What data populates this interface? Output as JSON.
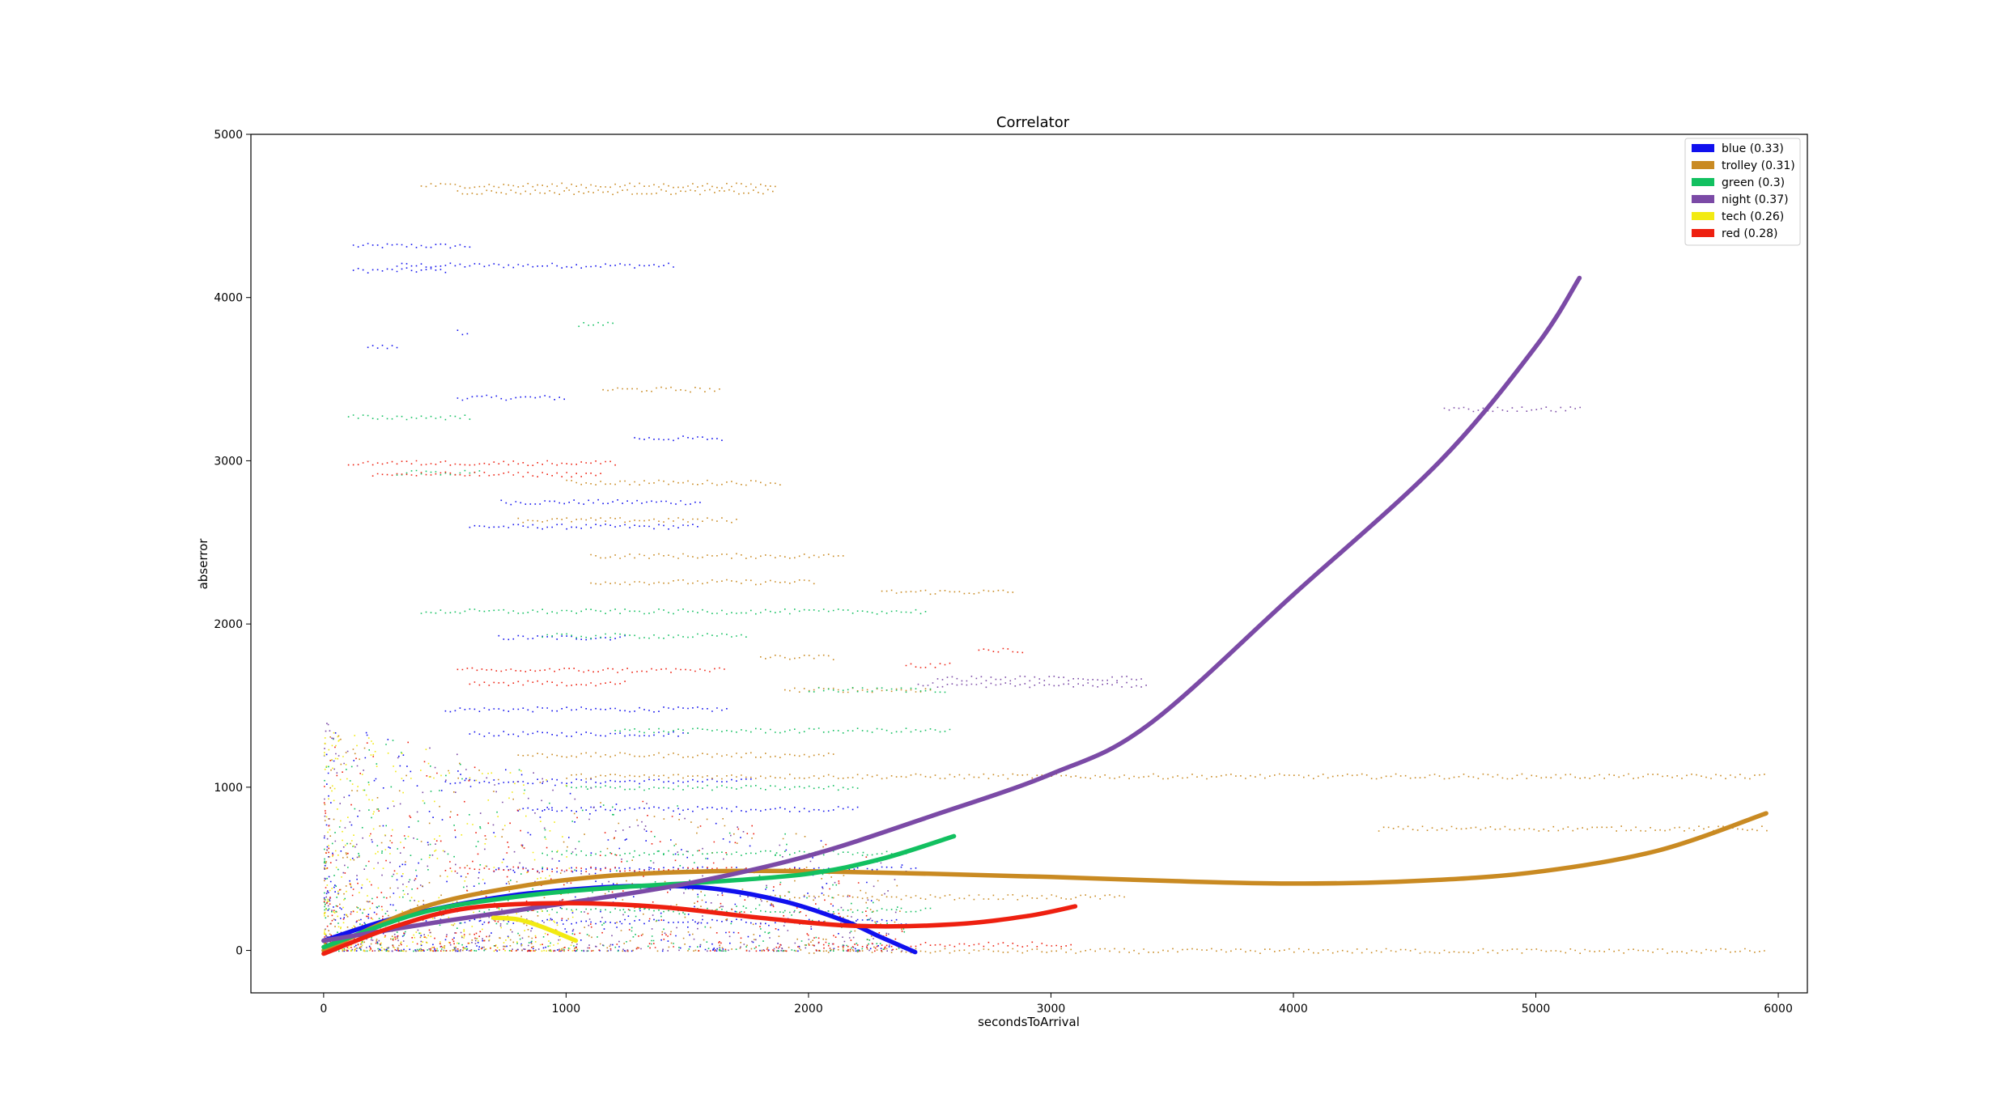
{
  "chart_data": {
    "type": "scatter",
    "title": "Correlator",
    "xlabel": "secondsToArrival",
    "ylabel": "abserror",
    "xlim": [
      -300,
      6120
    ],
    "ylim": [
      -260,
      5000
    ],
    "xticks": [
      0,
      1000,
      2000,
      3000,
      4000,
      5000,
      6000
    ],
    "yticks": [
      0,
      1000,
      2000,
      3000,
      4000,
      5000
    ],
    "grid": false,
    "legend_position": "top-right",
    "series": [
      {
        "name": "blue (0.33)",
        "color": "#1010ee",
        "fit": [
          [
            0,
            60
          ],
          [
            300,
            200
          ],
          [
            700,
            320
          ],
          [
            1000,
            370
          ],
          [
            1300,
            395
          ],
          [
            1600,
            380
          ],
          [
            1900,
            300
          ],
          [
            2150,
            180
          ],
          [
            2300,
            80
          ],
          [
            2440,
            -10
          ]
        ],
        "bands": [
          {
            "y": 4320,
            "x0": 120,
            "x1": 600
          },
          {
            "y": 4200,
            "x0": 300,
            "x1": 1450
          },
          {
            "y": 4170,
            "x0": 120,
            "x1": 500
          },
          {
            "y": 3790,
            "x0": 550,
            "x1": 600
          },
          {
            "y": 3700,
            "x0": 180,
            "x1": 300
          },
          {
            "y": 3390,
            "x0": 550,
            "x1": 1000
          },
          {
            "y": 3140,
            "x0": 1280,
            "x1": 1640
          },
          {
            "y": 2750,
            "x0": 730,
            "x1": 1550
          },
          {
            "y": 2600,
            "x0": 600,
            "x1": 1540
          },
          {
            "y": 1920,
            "x0": 720,
            "x1": 1250
          },
          {
            "y": 1480,
            "x0": 500,
            "x1": 1670
          },
          {
            "y": 1330,
            "x0": 600,
            "x1": 1500
          },
          {
            "y": 1040,
            "x0": 500,
            "x1": 1770
          },
          {
            "y": 870,
            "x0": 800,
            "x1": 2200
          },
          {
            "y": 500,
            "x0": 700,
            "x1": 2450
          },
          {
            "y": 180,
            "x0": 400,
            "x1": 2400
          }
        ]
      },
      {
        "name": "trolley (0.31)",
        "color": "#c98a22",
        "fit": [
          [
            0,
            0
          ],
          [
            400,
            260
          ],
          [
            800,
            390
          ],
          [
            1200,
            460
          ],
          [
            1600,
            485
          ],
          [
            2000,
            485
          ],
          [
            2500,
            470
          ],
          [
            3000,
            450
          ],
          [
            3500,
            425
          ],
          [
            4000,
            410
          ],
          [
            4500,
            425
          ],
          [
            5000,
            480
          ],
          [
            5500,
            610
          ],
          [
            5950,
            840
          ]
        ],
        "bands": [
          {
            "y": 4690,
            "x0": 400,
            "x1": 1860
          },
          {
            "y": 4650,
            "x0": 550,
            "x1": 1850
          },
          {
            "y": 3440,
            "x0": 1150,
            "x1": 1630
          },
          {
            "y": 2870,
            "x0": 1000,
            "x1": 1880
          },
          {
            "y": 2640,
            "x0": 800,
            "x1": 1700
          },
          {
            "y": 2420,
            "x0": 1100,
            "x1": 2150
          },
          {
            "y": 2260,
            "x0": 1100,
            "x1": 2020
          },
          {
            "y": 2200,
            "x0": 2300,
            "x1": 2840
          },
          {
            "y": 1800,
            "x0": 1800,
            "x1": 2100
          },
          {
            "y": 1600,
            "x0": 1900,
            "x1": 2510
          },
          {
            "y": 1200,
            "x0": 800,
            "x1": 2100
          },
          {
            "y": 1070,
            "x0": 1000,
            "x1": 5950
          },
          {
            "y": 750,
            "x0": 4350,
            "x1": 5950
          },
          {
            "y": 330,
            "x0": 1800,
            "x1": 3300
          },
          {
            "y": 0,
            "x0": 2000,
            "x1": 5950
          }
        ]
      },
      {
        "name": "green (0.3)",
        "color": "#12c060",
        "fit": [
          [
            0,
            20
          ],
          [
            400,
            230
          ],
          [
            800,
            330
          ],
          [
            1200,
            385
          ],
          [
            1600,
            420
          ],
          [
            2000,
            470
          ],
          [
            2300,
            560
          ],
          [
            2600,
            700
          ]
        ],
        "bands": [
          {
            "y": 3840,
            "x0": 1050,
            "x1": 1200
          },
          {
            "y": 3270,
            "x0": 100,
            "x1": 600
          },
          {
            "y": 2930,
            "x0": 300,
            "x1": 650
          },
          {
            "y": 2080,
            "x0": 400,
            "x1": 2480
          },
          {
            "y": 1930,
            "x0": 900,
            "x1": 1740
          },
          {
            "y": 1600,
            "x0": 2000,
            "x1": 2570
          },
          {
            "y": 1350,
            "x0": 1200,
            "x1": 2580
          },
          {
            "y": 1000,
            "x0": 1000,
            "x1": 2200
          },
          {
            "y": 600,
            "x0": 900,
            "x1": 2400
          },
          {
            "y": 250,
            "x0": 500,
            "x1": 2500
          }
        ]
      },
      {
        "name": "night (0.37)",
        "color": "#7b4aa6",
        "fit": [
          [
            0,
            60
          ],
          [
            500,
            180
          ],
          [
            1000,
            290
          ],
          [
            1500,
            410
          ],
          [
            2000,
            580
          ],
          [
            2500,
            820
          ],
          [
            3000,
            1080
          ],
          [
            3400,
            1380
          ],
          [
            4000,
            2180
          ],
          [
            4600,
            2990
          ],
          [
            5000,
            3700
          ],
          [
            5180,
            4120
          ]
        ],
        "bands": [
          {
            "y": 3320,
            "x0": 4620,
            "x1": 5190
          },
          {
            "y": 1670,
            "x0": 2530,
            "x1": 3380
          },
          {
            "y": 1630,
            "x0": 2450,
            "x1": 3400
          }
        ]
      },
      {
        "name": "tech (0.26)",
        "color": "#f2ea12",
        "fit": [
          [
            700,
            200
          ],
          [
            800,
            190
          ],
          [
            900,
            145
          ],
          [
            1040,
            60
          ]
        ],
        "bands": []
      },
      {
        "name": "red (0.28)",
        "color": "#ee2010",
        "fit": [
          [
            0,
            -20
          ],
          [
            300,
            150
          ],
          [
            600,
            260
          ],
          [
            1000,
            290
          ],
          [
            1400,
            265
          ],
          [
            1800,
            200
          ],
          [
            2200,
            150
          ],
          [
            2600,
            160
          ],
          [
            2900,
            210
          ],
          [
            3100,
            270
          ]
        ],
        "bands": [
          {
            "y": 2990,
            "x0": 100,
            "x1": 1200
          },
          {
            "y": 2920,
            "x0": 200,
            "x1": 1150
          },
          {
            "y": 1840,
            "x0": 2700,
            "x1": 2880
          },
          {
            "y": 1750,
            "x0": 2400,
            "x1": 2580
          },
          {
            "y": 1720,
            "x0": 550,
            "x1": 1650
          },
          {
            "y": 1640,
            "x0": 600,
            "x1": 1250
          },
          {
            "y": 500,
            "x0": 500,
            "x1": 2000
          },
          {
            "y": 40,
            "x0": 2000,
            "x1": 3080
          }
        ]
      }
    ]
  }
}
